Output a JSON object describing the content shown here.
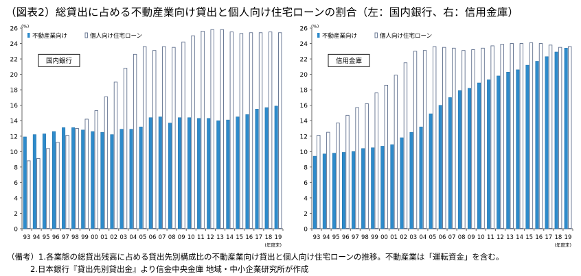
{
  "title": "（図表2）総貸出に占める不動産業向け貸出と個人向け住宅ローンの割合（左：国内銀行、右：信用金庫）",
  "notes": [
    "（備考）1.各業態の総貸出残高に占める貸出先別構成比の不動産業向け貸出と個人向け住宅ローンの推移。不動産業は「運転資金」を含む。",
    "2.日本銀行『貸出先別貸出金』より信金中央金庫 地域・中小企業研究所が作成"
  ],
  "colors": {
    "realestate": "#2E8BCB",
    "housing_fill": "#ffffff",
    "housing_stroke": "#5E6E8C"
  },
  "chart_data": [
    {
      "type": "bar",
      "label": "国内銀行",
      "unit": "(%)",
      "x_unit": "(年度末)",
      "categories": [
        "93",
        "94",
        "95",
        "96",
        "97",
        "98",
        "99",
        "00",
        "01",
        "02",
        "03",
        "04",
        "05",
        "06",
        "07",
        "08",
        "09",
        "10",
        "11",
        "12",
        "13",
        "14",
        "15",
        "16",
        "17",
        "18",
        "19"
      ],
      "series": [
        {
          "name": "不動産業向け",
          "values": [
            11.9,
            12.2,
            12.3,
            12.6,
            13.1,
            13.1,
            12.8,
            12.6,
            12.5,
            12.2,
            12.9,
            12.9,
            13.2,
            14.4,
            14.5,
            13.7,
            14.4,
            14.4,
            14.3,
            14.3,
            14.0,
            14.1,
            14.5,
            14.8,
            15.5,
            15.7,
            15.9
          ]
        },
        {
          "name": "個人向け住宅ローン",
          "values": [
            8.8,
            9.1,
            10.4,
            11.2,
            12.1,
            13.0,
            14.2,
            15.3,
            17.1,
            19.0,
            20.8,
            22.6,
            23.6,
            23.1,
            23.6,
            23.5,
            24.2,
            25.0,
            25.6,
            25.8,
            25.8,
            25.5,
            25.3,
            25.4,
            25.4,
            25.5,
            25.4
          ]
        }
      ],
      "ylim": [
        0,
        26
      ],
      "yticks": [
        0,
        2,
        4,
        6,
        8,
        10,
        12,
        14,
        16,
        18,
        20,
        22,
        24,
        26
      ],
      "legend": "top-left"
    },
    {
      "type": "bar",
      "label": "信用金庫",
      "unit": "(%)",
      "x_unit": "(年度末)",
      "categories": [
        "93",
        "94",
        "95",
        "96",
        "97",
        "98",
        "99",
        "00",
        "01",
        "02",
        "03",
        "04",
        "05",
        "06",
        "07",
        "08",
        "09",
        "10",
        "11",
        "12",
        "13",
        "14",
        "15",
        "16",
        "17",
        "18",
        "19"
      ],
      "series": [
        {
          "name": "不動産業向け",
          "values": [
            9.4,
            9.7,
            9.8,
            9.9,
            10.0,
            10.4,
            10.5,
            10.7,
            10.9,
            11.8,
            12.5,
            13.2,
            14.9,
            16.0,
            17.0,
            17.9,
            18.2,
            18.9,
            19.3,
            19.8,
            20.3,
            20.6,
            21.2,
            21.7,
            22.3,
            22.9,
            23.4
          ]
        },
        {
          "name": "個人向け住宅ローン",
          "values": [
            12.1,
            12.5,
            13.7,
            14.7,
            15.7,
            16.2,
            17.6,
            18.6,
            19.9,
            21.5,
            23.0,
            23.1,
            23.6,
            23.5,
            23.4,
            23.1,
            23.2,
            23.4,
            23.7,
            23.9,
            24.0,
            24.0,
            24.1,
            24.0,
            23.8,
            23.5,
            23.6
          ]
        }
      ],
      "ylim": [
        0,
        26
      ],
      "yticks": [
        0,
        2,
        4,
        6,
        8,
        10,
        12,
        14,
        16,
        18,
        20,
        22,
        24,
        26
      ],
      "legend": "top-left"
    }
  ]
}
